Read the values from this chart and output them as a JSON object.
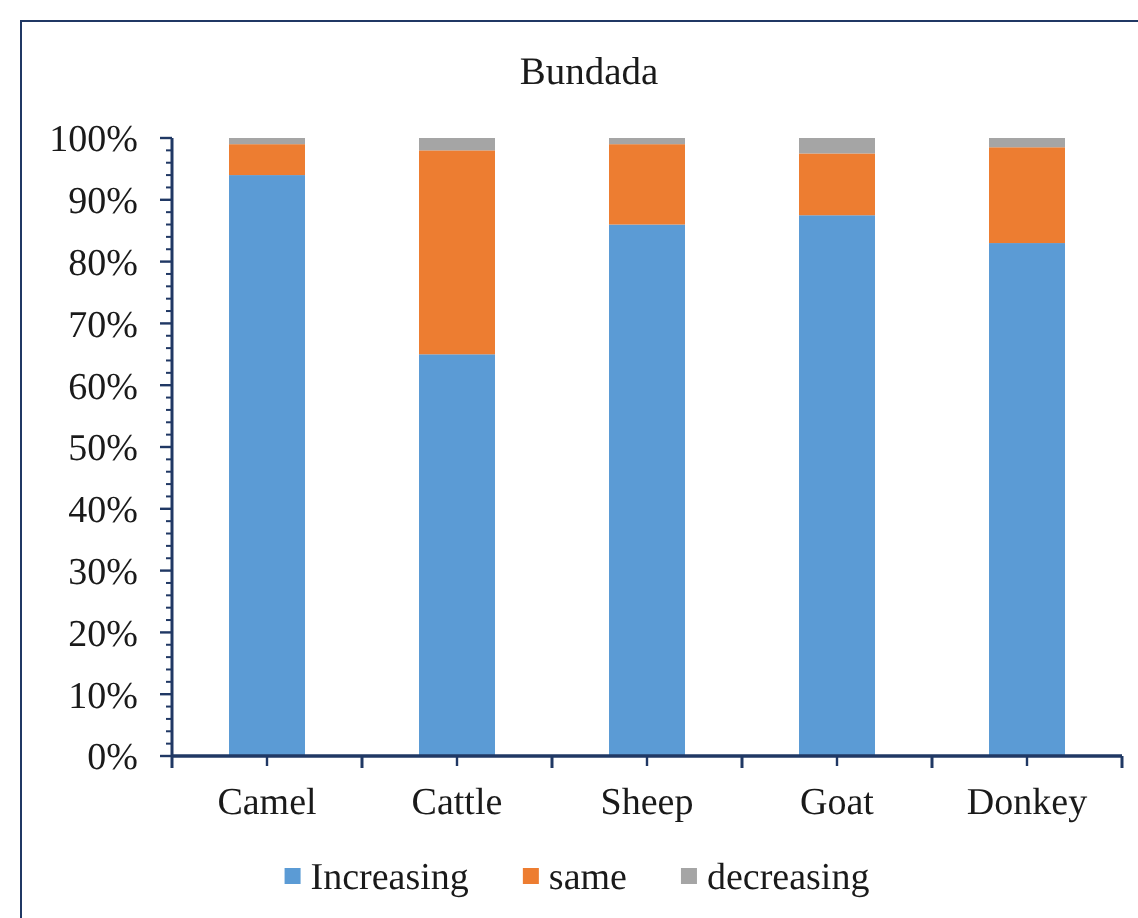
{
  "chart_data": {
    "type": "bar",
    "title": "Bundada",
    "categories": [
      "Camel",
      "Cattle",
      "Sheep",
      "Goat",
      "Donkey"
    ],
    "series": [
      {
        "name": "Increasing",
        "color": "#5b9bd5",
        "values": [
          94,
          65,
          86,
          87.5,
          83
        ]
      },
      {
        "name": "same",
        "color": "#ed7d31",
        "values": [
          5,
          33,
          13,
          10,
          15.5
        ]
      },
      {
        "name": "decreasing",
        "color": "#a5a5a5",
        "values": [
          1,
          2,
          1,
          2.5,
          1.5
        ]
      }
    ],
    "stacked": true,
    "ylim": [
      0,
      100
    ],
    "yticks": [
      {
        "value": 0,
        "label": "0%"
      },
      {
        "value": 10,
        "label": "10%"
      },
      {
        "value": 20,
        "label": "20%"
      },
      {
        "value": 30,
        "label": "30%"
      },
      {
        "value": 40,
        "label": "40%"
      },
      {
        "value": 50,
        "label": "50%"
      },
      {
        "value": 60,
        "label": "60%"
      },
      {
        "value": 70,
        "label": "70%"
      },
      {
        "value": 80,
        "label": "80%"
      },
      {
        "value": 90,
        "label": "90%"
      },
      {
        "value": 100,
        "label": "100%"
      }
    ],
    "legend": "bottom"
  }
}
